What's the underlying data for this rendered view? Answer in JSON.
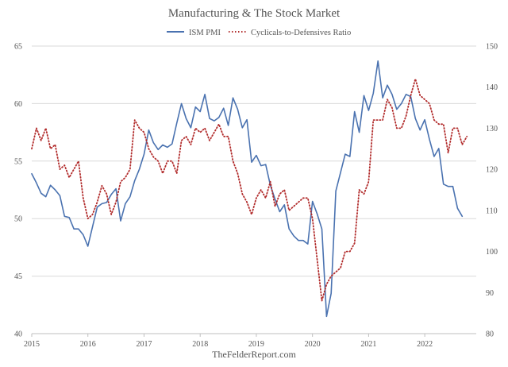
{
  "chart_data": {
    "type": "line",
    "title": "Manufacturing & The Stock Market",
    "source": "TheFelderReport.com",
    "x_start": 2015,
    "xlim": [
      2015,
      2022.917
    ],
    "x_ticks": [
      "2015",
      "2016",
      "2017",
      "2018",
      "2019",
      "2020",
      "2021",
      "2022"
    ],
    "y_left": {
      "lim": [
        40,
        65
      ],
      "ticks": [
        "40",
        "45",
        "50",
        "55",
        "60",
        "65"
      ]
    },
    "y_right": {
      "lim": [
        80,
        150
      ],
      "ticks": [
        "80",
        "90",
        "100",
        "110",
        "120",
        "130",
        "140",
        "150"
      ]
    },
    "grid": true,
    "legend_position": "top-center",
    "series": [
      {
        "name": "ISM PMI",
        "axis": "left",
        "color": "#4a72b0",
        "style": "solid",
        "values": [
          53.9,
          53.1,
          52.2,
          51.9,
          52.9,
          52.5,
          52.0,
          50.2,
          50.1,
          49.1,
          49.1,
          48.6,
          47.6,
          49.3,
          51.0,
          51.3,
          51.4,
          52.1,
          52.6,
          49.8,
          51.3,
          51.9,
          53.3,
          54.3,
          55.6,
          57.7,
          56.6,
          56.0,
          56.4,
          56.2,
          56.5,
          58.3,
          60.0,
          58.7,
          57.9,
          59.7,
          59.3,
          60.8,
          58.7,
          58.5,
          58.8,
          59.6,
          58.1,
          60.5,
          59.5,
          57.9,
          58.6,
          54.9,
          55.5,
          54.6,
          54.7,
          52.9,
          51.7,
          50.6,
          51.2,
          49.1,
          48.5,
          48.1,
          48.1,
          47.8,
          51.5,
          50.4,
          49.1,
          41.5,
          43.5,
          52.4,
          54.0,
          55.6,
          55.4,
          59.3,
          57.5,
          60.7,
          59.4,
          60.9,
          63.7,
          60.5,
          61.6,
          60.8,
          59.5,
          60.0,
          60.8,
          60.6,
          58.7,
          57.7,
          58.6,
          56.9,
          55.4,
          56.1,
          53.0,
          52.8,
          52.8,
          50.9,
          50.2
        ]
      },
      {
        "name": "Cyclicals-to-Defensives Ratio",
        "axis": "right",
        "color": "#b22d2d",
        "style": "dotted",
        "values": [
          125,
          130,
          127,
          130,
          125,
          126,
          120,
          121,
          118,
          120,
          122,
          113,
          108,
          109,
          112,
          116,
          114,
          109,
          112,
          117,
          118,
          120,
          132,
          130,
          129,
          125,
          123,
          122,
          119,
          122,
          122,
          119,
          127,
          128,
          126,
          130,
          129,
          130,
          127,
          129,
          131,
          128,
          128,
          122,
          119,
          114,
          112,
          109,
          113,
          115,
          113,
          117,
          111,
          114,
          115,
          110,
          111,
          112,
          113,
          113,
          108,
          98,
          88,
          92,
          94,
          95,
          96,
          100,
          100,
          102,
          115,
          114,
          117,
          132,
          132,
          132,
          137,
          135,
          130,
          130,
          133,
          138,
          142,
          138,
          137,
          136,
          132,
          131,
          131,
          124,
          130,
          130,
          126,
          128
        ]
      }
    ]
  }
}
